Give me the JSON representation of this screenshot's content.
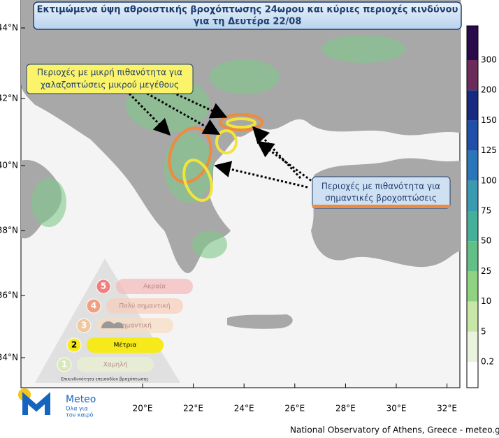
{
  "title": [
    "Εκτιμώμενα ύψη αθροιστικής βροχόπτωσης 24ωρου και κύριες περιοχές κινδύνου",
    "για τη Δευτέρα 22/08"
  ],
  "callouts": [
    {
      "text": [
        "Περιοχές με μικρή πιθανότητα για",
        "χαλαζοπτώσεις μικρού μεγέθους"
      ]
    },
    {
      "text": [
        "Περιοχές με πιθανότητα για",
        "σημαντικές βροχοπτώσεις"
      ]
    }
  ],
  "colorbar": {
    "labels": [
      300,
      200,
      150,
      125,
      100,
      75,
      50,
      25,
      10,
      5,
      0.2
    ]
  },
  "latitude_labels": [
    "44°N",
    "42°N",
    "40°N",
    "38°N",
    "36°N",
    "34°N"
  ],
  "longitude_labels": [
    "20°E",
    "22°E",
    "24°E",
    "26°E",
    "28°E",
    "30°E",
    "32°E"
  ],
  "risk_scale": {
    "levels": [
      {
        "number": "5",
        "label": "Ακραία"
      },
      {
        "number": "4",
        "label": "Πολύ σημαντική"
      },
      {
        "number": "3",
        "label": "Σημαντική"
      },
      {
        "number": "2",
        "label": "Μέτρια"
      },
      {
        "number": "1",
        "label": "Χαμηλή"
      }
    ],
    "caption": "Επικινδυνότητα επεισοδίου βροχόπτωσης"
  },
  "logo": {
    "name": "Meteo",
    "tagline": [
      "Όλα για",
      "τον καιρό"
    ]
  },
  "footer": "National Observatory of Athens, Greece - meteo.gr"
}
